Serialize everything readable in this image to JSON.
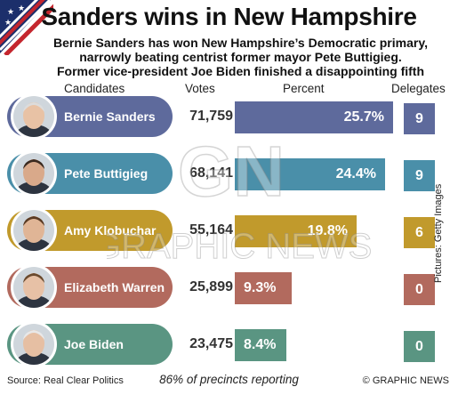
{
  "title": "Sanders wins in New Hampshire",
  "subtitle": [
    "Bernie Sanders has won New Hampshire’s Democratic primary,",
    "narrowly beating centrist former mayor Pete Buttigieg.",
    "Former vice-president Joe Biden finished a disappointing fifth"
  ],
  "headers": {
    "candidates": "Candidates",
    "votes": "Votes",
    "percent": "Percent",
    "delegates": "Delegates"
  },
  "rows": [
    {
      "name": "Bernie Sanders",
      "votes": "71,759",
      "percent_label": "25.7%",
      "percent": 25.7,
      "delegates": "9",
      "color": "#5e6a9c",
      "photo": "bernie-sanders-photo"
    },
    {
      "name": "Pete Buttigieg",
      "votes": "68,141",
      "percent_label": "24.4%",
      "percent": 24.4,
      "delegates": "9",
      "color": "#4a8fa9",
      "photo": "pete-buttigieg-photo"
    },
    {
      "name": "Amy Klobuchar",
      "votes": "55,164",
      "percent_label": "19.8%",
      "percent": 19.8,
      "delegates": "6",
      "color": "#c19a2c",
      "photo": "amy-klobuchar-photo"
    },
    {
      "name": "Elizabeth Warren",
      "votes": "25,899",
      "percent_label": "9.3%",
      "percent": 9.3,
      "delegates": "0",
      "color": "#b26a5e",
      "photo": "elizabeth-warren-photo"
    },
    {
      "name": "Joe Biden",
      "votes": "23,475",
      "percent_label": "8.4%",
      "percent": 8.4,
      "delegates": "0",
      "color": "#5a9582",
      "photo": "joe-biden-photo"
    }
  ],
  "chart_data": {
    "type": "bar",
    "categories": [
      "Bernie Sanders",
      "Pete Buttigieg",
      "Amy Klobuchar",
      "Elizabeth Warren",
      "Joe Biden"
    ],
    "series": [
      {
        "name": "Votes",
        "values": [
          71759,
          68141,
          55164,
          25899,
          23475
        ]
      },
      {
        "name": "Percent",
        "values": [
          25.7,
          24.4,
          19.8,
          9.3,
          8.4
        ]
      },
      {
        "name": "Delegates",
        "values": [
          9,
          9,
          6,
          0,
          0
        ]
      }
    ],
    "title": "Sanders wins in New Hampshire",
    "xlabel": "",
    "ylabel": "",
    "grid": false,
    "legend": "none"
  },
  "footer": {
    "source": "Source: Real Clear Politics",
    "reporting": "86% of precincts reporting",
    "brand": "© GRAPHIC NEWS",
    "credit": "Pictures: Getty Images"
  },
  "watermark": {
    "letters": "GN",
    "text": "GRAPHIC NEWS"
  },
  "colors": {
    "flag_red": "#c4262e",
    "flag_blue": "#1c2f6b"
  }
}
